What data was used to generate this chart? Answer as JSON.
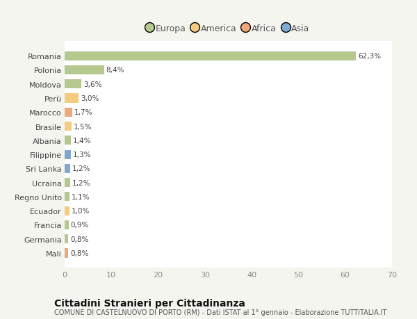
{
  "countries": [
    "Romania",
    "Polonia",
    "Moldova",
    "Perù",
    "Marocco",
    "Brasile",
    "Albania",
    "Filippine",
    "Sri Lanka",
    "Ucraina",
    "Regno Unito",
    "Ecuador",
    "Francia",
    "Germania",
    "Mali"
  ],
  "values": [
    62.3,
    8.4,
    3.6,
    3.0,
    1.7,
    1.5,
    1.4,
    1.3,
    1.2,
    1.2,
    1.1,
    1.0,
    0.9,
    0.8,
    0.8
  ],
  "labels": [
    "62,3%",
    "8,4%",
    "3,6%",
    "3,0%",
    "1,7%",
    "1,5%",
    "1,4%",
    "1,3%",
    "1,2%",
    "1,2%",
    "1,1%",
    "1,0%",
    "0,9%",
    "0,8%",
    "0,8%"
  ],
  "colors": [
    "#b5c98e",
    "#b5c98e",
    "#b5c98e",
    "#f5cc7f",
    "#f0a87a",
    "#f5cc7f",
    "#b5c98e",
    "#80a8d0",
    "#80a8d0",
    "#b5c98e",
    "#b5c98e",
    "#f5cc7f",
    "#b5c98e",
    "#b5c98e",
    "#f0a87a"
  ],
  "legend_labels": [
    "Europa",
    "America",
    "Africa",
    "Asia"
  ],
  "legend_colors": [
    "#b5c98e",
    "#f5cc7f",
    "#f0a87a",
    "#80a8d0"
  ],
  "xlim": [
    0,
    70
  ],
  "xticks": [
    0,
    10,
    20,
    30,
    40,
    50,
    60,
    70
  ],
  "title": "Cittadini Stranieri per Cittadinanza",
  "subtitle": "COMUNE DI CASTELNUOVO DI PORTO (RM) - Dati ISTAT al 1° gennaio - Elaborazione TUTTITALIA.IT",
  "background_color": "#f5f5f0",
  "plot_bg_color": "#ffffff",
  "grid_color": "#dddddd",
  "bar_height": 0.65
}
